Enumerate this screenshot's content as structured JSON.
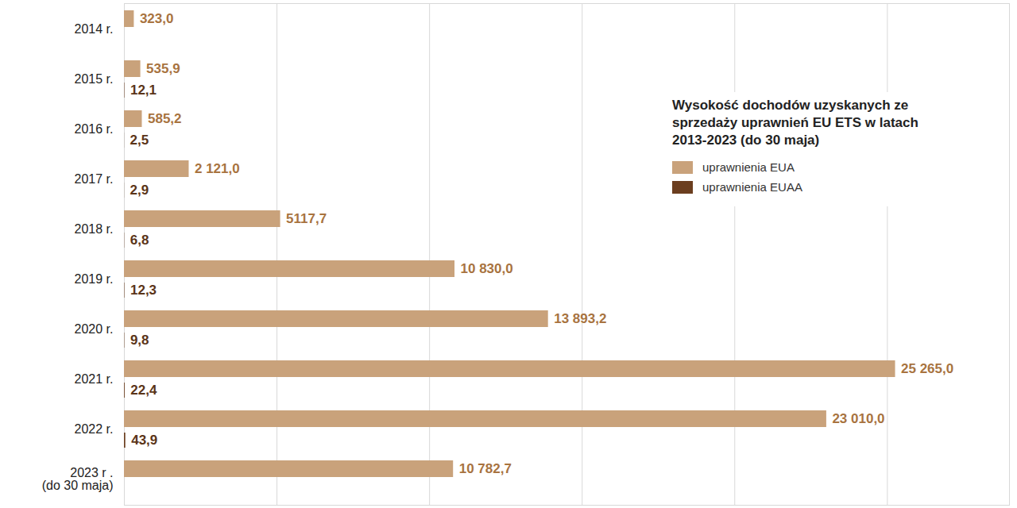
{
  "chart_data": {
    "type": "bar",
    "orientation": "horizontal",
    "title": "Wysokość dochodów uzyskanych ze sprzedaży uprawnień EU ETS w latach 2013-2023 (do 30 maja)",
    "categories": [
      "2014 r.",
      "2015 r.",
      "2016 r.",
      "2017 r.",
      "2018 r.",
      "2019 r.",
      "2020 r.",
      "2021 r.",
      "2022 r.",
      "2023 r .\n(do 30 maja)"
    ],
    "series": [
      {
        "name": "uprawnienia EUA",
        "color": "#c9a27b",
        "values": [
          323.0,
          535.9,
          585.2,
          2121.0,
          5117.7,
          10830.0,
          13893.2,
          25265.0,
          23010.0,
          10782.7
        ],
        "value_labels": [
          "323,0",
          "535,9",
          "585,2",
          "2 121,0",
          "5117,7",
          "10 830,0",
          "13 893,2",
          "25 265,0",
          "23 010,0",
          "10 782,7"
        ]
      },
      {
        "name": "uprawnienia EUAA",
        "color": "#6b3e1f",
        "values": [
          null,
          12.1,
          2.5,
          2.9,
          6.8,
          12.3,
          9.8,
          22.4,
          43.9,
          null
        ],
        "value_labels": [
          null,
          "12,1",
          "2,5",
          "2,9",
          "6,8",
          "12,3",
          "9,8",
          "22,4",
          "43,9",
          null
        ]
      }
    ],
    "xlim": [
      0,
      29000
    ],
    "xticks": [
      0,
      5000,
      10000,
      15000,
      20000,
      25000
    ],
    "grid": true,
    "legend": "top-right",
    "data_labels": true,
    "tick_labels": "y"
  }
}
